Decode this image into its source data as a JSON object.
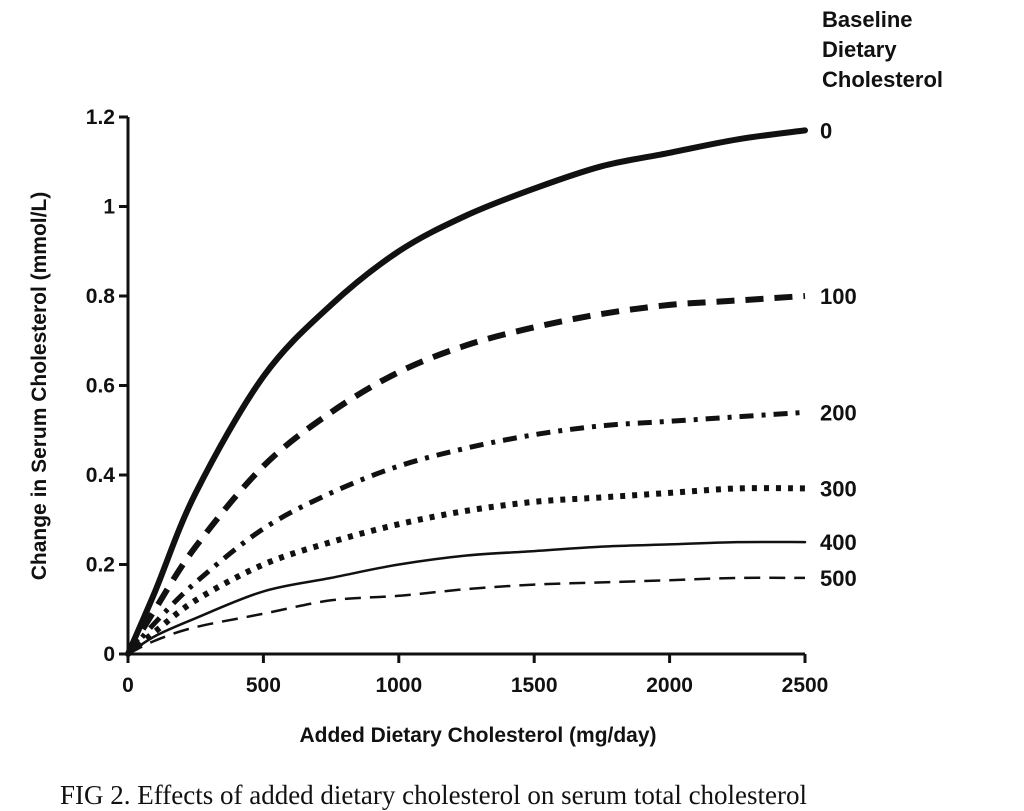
{
  "chart_data": {
    "type": "line",
    "title": "",
    "xlabel": "Added Dietary Cholesterol (mg/day)",
    "ylabel": "Change in Serum Cholesterol (mmol/L)",
    "xlim": [
      0,
      2500
    ],
    "ylim": [
      0,
      1.2
    ],
    "x_ticks": [
      "0",
      "500",
      "1000",
      "1500",
      "2000",
      "2500"
    ],
    "y_ticks": [
      "0",
      "0.2",
      "0.4",
      "0.6",
      "0.8",
      "1",
      "1.2"
    ],
    "legend_title": [
      "Baseline",
      "Dietary",
      "Cholesterol"
    ],
    "legend_placement": "right",
    "grid": false,
    "x": [
      0,
      100,
      250,
      500,
      750,
      1000,
      1250,
      1500,
      1750,
      2000,
      2250,
      2500
    ],
    "series": [
      {
        "name": "0",
        "style": "solid-thick",
        "values": [
          0,
          0.14,
          0.36,
          0.62,
          0.78,
          0.9,
          0.98,
          1.04,
          1.09,
          1.12,
          1.15,
          1.17
        ]
      },
      {
        "name": "100",
        "style": "dashed-thick",
        "values": [
          0,
          0.1,
          0.24,
          0.42,
          0.54,
          0.63,
          0.69,
          0.73,
          0.76,
          0.78,
          0.79,
          0.8
        ]
      },
      {
        "name": "200",
        "style": "dashdot",
        "values": [
          0,
          0.07,
          0.16,
          0.28,
          0.36,
          0.42,
          0.46,
          0.49,
          0.51,
          0.52,
          0.53,
          0.54
        ]
      },
      {
        "name": "300",
        "style": "dotted",
        "values": [
          0,
          0.05,
          0.12,
          0.2,
          0.25,
          0.29,
          0.32,
          0.34,
          0.35,
          0.36,
          0.37,
          0.37
        ]
      },
      {
        "name": "400",
        "style": "solid-thin",
        "values": [
          0,
          0.04,
          0.08,
          0.14,
          0.17,
          0.2,
          0.22,
          0.23,
          0.24,
          0.245,
          0.25,
          0.25
        ]
      },
      {
        "name": "500",
        "style": "dashed-thin",
        "values": [
          0,
          0.03,
          0.06,
          0.09,
          0.12,
          0.13,
          0.145,
          0.155,
          0.16,
          0.165,
          0.17,
          0.17
        ]
      }
    ]
  },
  "caption": "FIG 2. Effects of added dietary cholesterol on serum total cholesterol"
}
